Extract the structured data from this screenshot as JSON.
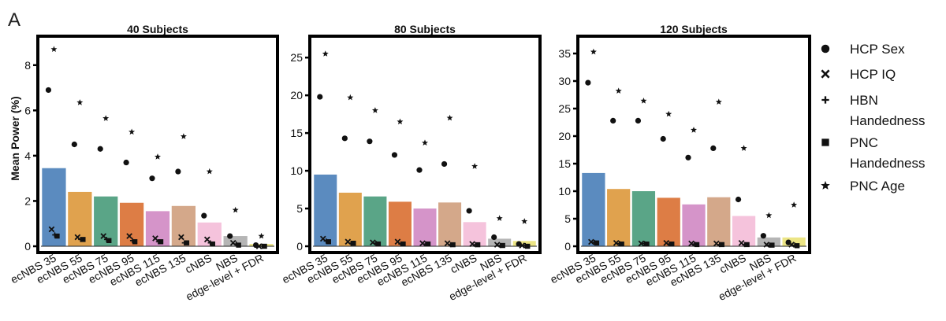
{
  "figure_label": "A",
  "ylabel": "Mean Power (%)",
  "categories": [
    "ecNBS 35",
    "ecNBS 55",
    "ecNBS 75",
    "ecNBS 95",
    "ecNBS 115",
    "ecNBS 135",
    "cNBS",
    "NBS",
    "edge-level + FDR"
  ],
  "bar_colors": [
    "#5b8bbf",
    "#e0a24e",
    "#5aa587",
    "#dd7d45",
    "#d594c9",
    "#d4a88a",
    "#f5c3dc",
    "#b5b5b5",
    "#ece585"
  ],
  "legend": [
    {
      "label": "HCP Sex",
      "marker": "circle"
    },
    {
      "label": "HCP IQ",
      "marker": "x"
    },
    {
      "label": "HBN Handedness",
      "marker": "plus"
    },
    {
      "label": "PNC Handedness",
      "marker": "square"
    },
    {
      "label": "PNC Age",
      "marker": "star"
    }
  ],
  "chart_data": [
    {
      "type": "bar",
      "title": "40 Subjects",
      "ylim": [
        0,
        9
      ],
      "yticks": [
        0,
        2,
        4,
        6,
        8
      ],
      "categories": [
        "ecNBS 35",
        "ecNBS 55",
        "ecNBS 75",
        "ecNBS 95",
        "ecNBS 115",
        "ecNBS 135",
        "cNBS",
        "NBS",
        "edge-level + FDR"
      ],
      "mean_values": [
        3.45,
        2.4,
        2.2,
        1.92,
        1.55,
        1.78,
        1.05,
        0.45,
        0.1
      ],
      "series": [
        {
          "name": "HCP Sex",
          "marker": "circle",
          "values": [
            6.9,
            4.5,
            4.3,
            3.7,
            3.0,
            3.3,
            1.35,
            0.45,
            0.05
          ]
        },
        {
          "name": "HCP IQ",
          "marker": "x",
          "values": [
            0.75,
            0.4,
            0.45,
            0.45,
            0.35,
            0.4,
            0.3,
            0.15,
            0.0
          ]
        },
        {
          "name": "HBN Handedness",
          "marker": "plus",
          "values": [
            0.5,
            0.3,
            0.3,
            0.25,
            0.2,
            0.15,
            0.15,
            0.1,
            0.0
          ]
        },
        {
          "name": "PNC Handedness",
          "marker": "square",
          "values": [
            0.45,
            0.3,
            0.25,
            0.2,
            0.2,
            0.15,
            0.1,
            0.05,
            0.0
          ]
        },
        {
          "name": "PNC Age",
          "marker": "star",
          "values": [
            8.7,
            6.35,
            5.65,
            5.05,
            3.95,
            4.85,
            3.3,
            1.6,
            0.45
          ]
        }
      ]
    },
    {
      "type": "bar",
      "title": "80 Subjects",
      "ylim": [
        0,
        27
      ],
      "yticks": [
        0,
        5,
        10,
        15,
        20,
        25
      ],
      "categories": [
        "ecNBS 35",
        "ecNBS 55",
        "ecNBS 75",
        "ecNBS 95",
        "ecNBS 115",
        "ecNBS 135",
        "cNBS",
        "NBS",
        "edge-level + FDR"
      ],
      "mean_values": [
        9.5,
        7.1,
        6.6,
        5.9,
        5.0,
        5.8,
        3.2,
        1.0,
        0.7
      ],
      "series": [
        {
          "name": "HCP Sex",
          "marker": "circle",
          "values": [
            19.8,
            14.3,
            13.9,
            12.1,
            10.1,
            10.9,
            4.7,
            1.2,
            0.3
          ]
        },
        {
          "name": "HCP IQ",
          "marker": "x",
          "values": [
            1.0,
            0.6,
            0.5,
            0.6,
            0.4,
            0.4,
            0.3,
            0.2,
            0.1
          ]
        },
        {
          "name": "HBN Handedness",
          "marker": "plus",
          "values": [
            0.7,
            0.4,
            0.4,
            0.3,
            0.3,
            0.2,
            0.2,
            0.1,
            0.1
          ]
        },
        {
          "name": "PNC Handedness",
          "marker": "square",
          "values": [
            0.6,
            0.4,
            0.3,
            0.3,
            0.3,
            0.2,
            0.2,
            0.1,
            0.0
          ]
        },
        {
          "name": "PNC Age",
          "marker": "star",
          "values": [
            25.5,
            19.7,
            18.0,
            16.5,
            13.7,
            17.0,
            10.6,
            3.7,
            3.3
          ]
        }
      ]
    },
    {
      "type": "bar",
      "title": "120 Subjects",
      "ylim": [
        0,
        37
      ],
      "yticks": [
        0,
        5,
        10,
        15,
        20,
        25,
        30,
        35
      ],
      "categories": [
        "ecNBS 35",
        "ecNBS 55",
        "ecNBS 75",
        "ecNBS 95",
        "ecNBS 115",
        "ecNBS 135",
        "cNBS",
        "NBS",
        "edge-level + FDR"
      ],
      "mean_values": [
        13.3,
        10.4,
        10.0,
        8.8,
        7.6,
        8.9,
        5.5,
        1.6,
        1.6
      ],
      "series": [
        {
          "name": "HCP Sex",
          "marker": "circle",
          "values": [
            29.7,
            22.8,
            22.8,
            19.5,
            16.1,
            17.8,
            8.5,
            1.9,
            0.7
          ]
        },
        {
          "name": "HCP IQ",
          "marker": "x",
          "values": [
            0.8,
            0.6,
            0.5,
            0.6,
            0.5,
            0.5,
            0.6,
            0.3,
            0.3
          ]
        },
        {
          "name": "HBN Handedness",
          "marker": "plus",
          "values": [
            0.7,
            0.5,
            0.5,
            0.4,
            0.4,
            0.3,
            0.3,
            0.2,
            0.2
          ]
        },
        {
          "name": "PNC Handedness",
          "marker": "square",
          "values": [
            0.6,
            0.4,
            0.4,
            0.4,
            0.3,
            0.3,
            0.3,
            0.2,
            0.1
          ]
        },
        {
          "name": "PNC Age",
          "marker": "star",
          "values": [
            35.3,
            28.2,
            26.4,
            24.0,
            21.1,
            26.2,
            17.8,
            5.6,
            7.5
          ]
        }
      ]
    }
  ]
}
